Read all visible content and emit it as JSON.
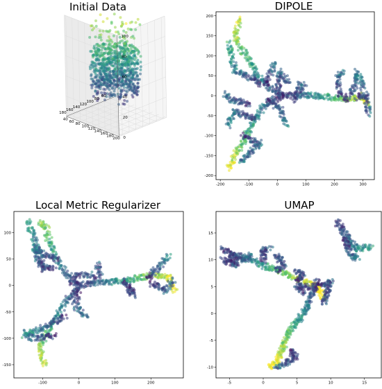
{
  "colormap": [
    "#440154",
    "#3b528b",
    "#21918c",
    "#5ec962",
    "#fde725"
  ],
  "chart_data": [
    {
      "type": "scatter",
      "projection": "3d",
      "title": "Initial Data",
      "x_ticks": [
        "60",
        "80",
        "100",
        "120",
        "140",
        "160",
        "180"
      ],
      "y_ticks": [
        "40",
        "60",
        "80",
        "100",
        "120",
        "140",
        "160",
        "180",
        "200"
      ],
      "z_ticks": [
        "0",
        "20",
        "40",
        "60",
        "80",
        "100"
      ],
      "xlim": [
        50,
        190
      ],
      "ylim": [
        35,
        205
      ],
      "zlim": [
        0,
        100
      ],
      "grid": true
    },
    {
      "type": "scatter",
      "title": "DIPOLE",
      "x_ticks": [
        "-200",
        "-100",
        "0",
        "100",
        "200",
        "300"
      ],
      "y_ticks": [
        "200",
        "150",
        "100",
        "50",
        "0",
        "-50",
        "-100",
        "-150",
        "-200"
      ],
      "xlim": [
        -215,
        340
      ],
      "ylim": [
        -210,
        210
      ],
      "arms": [
        [
          [
            20,
            0
          ],
          [
            -30,
            20
          ],
          [
            -70,
            50
          ],
          [
            -100,
            90
          ],
          [
            -130,
            120
          ],
          [
            -150,
            150
          ],
          [
            -135,
            190
          ]
        ],
        [
          [
            20,
            0
          ],
          [
            -40,
            -20
          ],
          [
            -80,
            -60
          ],
          [
            -110,
            -100
          ],
          [
            -140,
            -140
          ],
          [
            -170,
            -180
          ]
        ],
        [
          [
            20,
            0
          ],
          [
            80,
            2
          ],
          [
            140,
            0
          ],
          [
            200,
            -5
          ],
          [
            250,
            -10
          ],
          [
            290,
            0
          ],
          [
            315,
            -20
          ]
        ],
        [
          [
            -60,
            30
          ],
          [
            -150,
            65
          ],
          [
            -170,
            130
          ]
        ],
        [
          [
            -80,
            -55
          ],
          [
            -150,
            -40
          ],
          [
            -175,
            -75
          ]
        ],
        [
          [
            0,
            10
          ],
          [
            10,
            60
          ],
          [
            40,
            30
          ]
        ],
        [
          [
            60,
            -10
          ],
          [
            80,
            30
          ],
          [
            95,
            20
          ]
        ],
        [
          [
            -120,
            -100
          ],
          [
            -60,
            -120
          ],
          [
            -130,
            -165
          ]
        ],
        [
          [
            240,
            -10
          ],
          [
            275,
            30
          ],
          [
            280,
            60
          ],
          [
            300,
            20
          ]
        ],
        [
          [
            220,
            0
          ],
          [
            210,
            40
          ],
          [
            225,
            60
          ]
        ],
        [
          [
            280,
            -5
          ],
          [
            310,
            5
          ],
          [
            320,
            -45
          ]
        ],
        [
          [
            -100,
            -20
          ],
          [
            -170,
            -10
          ],
          [
            -180,
            5
          ]
        ],
        [
          [
            -30,
            -10
          ],
          [
            10,
            -35
          ],
          [
            30,
            -70
          ]
        ],
        [
          [
            -40,
            30
          ],
          [
            -20,
            60
          ],
          [
            -10,
            80
          ]
        ]
      ]
    },
    {
      "type": "scatter",
      "title": "Local Metric Regularizer",
      "x_ticks": [
        "-100",
        "0",
        "100",
        "200"
      ],
      "y_ticks": [
        "100",
        "50",
        "0",
        "-50",
        "-100",
        "-150"
      ],
      "xlim": [
        -180,
        290
      ],
      "ylim": [
        -175,
        140
      ],
      "arms": [
        [
          [
            0,
            0
          ],
          [
            -40,
            25
          ],
          [
            -70,
            60
          ],
          [
            -85,
            90
          ],
          [
            -90,
            110
          ],
          [
            -110,
            120
          ]
        ],
        [
          [
            0,
            0
          ],
          [
            -40,
            -35
          ],
          [
            -70,
            -70
          ],
          [
            -95,
            -100
          ],
          [
            -110,
            -120
          ],
          [
            -95,
            -150
          ]
        ],
        [
          [
            0,
            0
          ],
          [
            60,
            5
          ],
          [
            120,
            8
          ],
          [
            170,
            15
          ],
          [
            210,
            20
          ],
          [
            250,
            15
          ],
          [
            265,
            -10
          ]
        ],
        [
          [
            -60,
            50
          ],
          [
            -100,
            60
          ],
          [
            -120,
            70
          ]
        ],
        [
          [
            -70,
            30
          ],
          [
            -110,
            40
          ],
          [
            -125,
            75
          ]
        ],
        [
          [
            -40,
            -60
          ],
          [
            -100,
            -80
          ],
          [
            -150,
            -95
          ]
        ],
        [
          [
            -70,
            -95
          ],
          [
            -130,
            -100
          ],
          [
            -145,
            -90
          ]
        ],
        [
          [
            -20,
            5
          ],
          [
            0,
            20
          ],
          [
            30,
            20
          ]
        ],
        [
          [
            0,
            -10
          ],
          [
            -10,
            -40
          ],
          [
            20,
            -60
          ]
        ],
        [
          [
            190,
            15
          ],
          [
            230,
            40
          ],
          [
            250,
            55
          ]
        ],
        [
          [
            200,
            5
          ],
          [
            240,
            -10
          ],
          [
            260,
            10
          ]
        ],
        [
          [
            140,
            0
          ],
          [
            150,
            -20
          ],
          [
            120,
            10
          ]
        ],
        [
          [
            40,
            10
          ],
          [
            60,
            25
          ],
          [
            50,
            40
          ]
        ],
        [
          [
            -95,
            30
          ],
          [
            -130,
            100
          ],
          [
            -140,
            120
          ]
        ]
      ]
    },
    {
      "type": "scatter",
      "title": "UMAP",
      "x_ticks": [
        "-5",
        "0",
        "5",
        "10",
        "15"
      ],
      "y_ticks": [
        "15",
        "10",
        "5",
        "0",
        "-5",
        "-10"
      ],
      "xlim": [
        -7,
        17.5
      ],
      "ylim": [
        -12,
        19
      ],
      "arms": [
        [
          [
            -6,
            12
          ],
          [
            -4,
            11
          ],
          [
            -2,
            10
          ],
          [
            0,
            9
          ],
          [
            2,
            8
          ],
          [
            4,
            7
          ],
          [
            6,
            6
          ],
          [
            8,
            5
          ],
          [
            9,
            3
          ]
        ],
        [
          [
            8,
            6
          ],
          [
            7,
            3
          ],
          [
            6,
            0
          ],
          [
            4,
            -3
          ],
          [
            3,
            -6
          ],
          [
            2,
            -9
          ],
          [
            1,
            -10
          ]
        ],
        [
          [
            11,
            17
          ],
          [
            12,
            15
          ],
          [
            13,
            13
          ],
          [
            14,
            12
          ],
          [
            16,
            12.5
          ]
        ],
        [
          [
            12,
            14
          ],
          [
            13,
            11
          ],
          [
            14,
            10
          ]
        ],
        [
          [
            -5,
            11
          ],
          [
            -3,
            10
          ],
          [
            -2,
            11
          ]
        ],
        [
          [
            0,
            10
          ],
          [
            0,
            12
          ],
          [
            1,
            12
          ]
        ],
        [
          [
            2,
            8
          ],
          [
            3,
            9
          ],
          [
            2,
            11
          ]
        ],
        [
          [
            5,
            6
          ],
          [
            6,
            7
          ],
          [
            5,
            8
          ]
        ],
        [
          [
            8,
            5
          ],
          [
            10,
            6
          ],
          [
            9,
            2
          ]
        ],
        [
          [
            4,
            -7
          ],
          [
            5,
            -8
          ],
          [
            2,
            -10
          ]
        ],
        [
          [
            -5,
            10
          ],
          [
            -4,
            9
          ],
          [
            -6,
            10
          ]
        ],
        [
          [
            6,
            4
          ],
          [
            5,
            5
          ],
          [
            7,
            5
          ]
        ]
      ]
    }
  ]
}
